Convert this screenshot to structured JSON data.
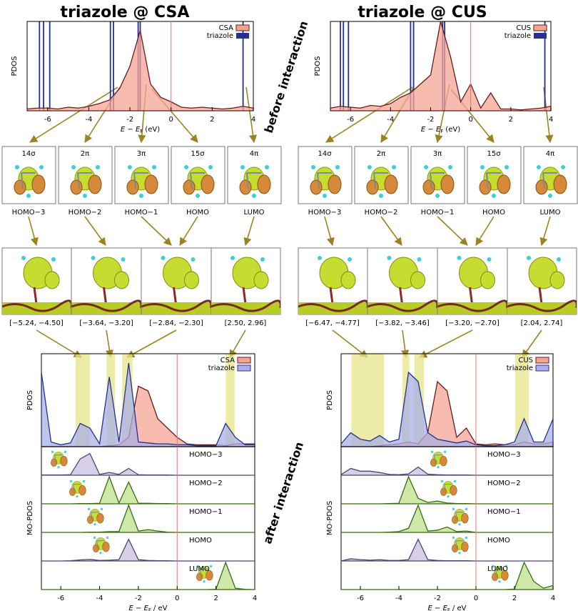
{
  "titles": [
    "triazole @ CSA",
    "triazole @ CUS"
  ],
  "side_labels": [
    "before interaction",
    "after interaction"
  ],
  "orbitals": [
    {
      "name": "14σ",
      "homo": "HOMO−3"
    },
    {
      "name": "2π",
      "homo": "HOMO−2"
    },
    {
      "name": "3π",
      "homo": "HOMO−1"
    },
    {
      "name": "15σ",
      "homo": "HOMO"
    },
    {
      "name": "4π",
      "homo": "LUMO"
    }
  ],
  "chart_data": [
    {
      "type": "levels",
      "ylabel": "PDOS",
      "xlabel": {
        "text": "E − E",
        "sub": "F",
        "unit": "(eV)"
      },
      "xlim": [
        -7,
        4
      ],
      "ylim": [
        0,
        10
      ],
      "xticks": [
        -6,
        -4,
        -2,
        0,
        2,
        4
      ],
      "fermi_level": 0,
      "fermi_color": "#e87070",
      "x": [
        -7,
        -6.5,
        -6,
        -5.5,
        -5,
        -4.5,
        -4,
        -3.5,
        -3,
        -2.5,
        -2,
        -1.5,
        -1,
        -0.5,
        0,
        0.5,
        1,
        1.5,
        2,
        2.5,
        3,
        3.5,
        4
      ],
      "series": [
        {
          "name": "CSA",
          "color": "#f4a494",
          "line": "#6b1a1a",
          "values": [
            0.2,
            0.3,
            0.3,
            0.2,
            0.4,
            0.3,
            0.5,
            0.8,
            1.2,
            2.5,
            5,
            9,
            3,
            1.5,
            1,
            0.4,
            0.3,
            0.4,
            0.3,
            0.2,
            0.3,
            0.5,
            0.3
          ]
        },
        {
          "name": "triazole",
          "color": "#26318f",
          "levels": [
            -6.4,
            -6.2,
            -5.9,
            -2.95,
            -2.8,
            -1.6,
            -1.5,
            3.5
          ]
        }
      ]
    },
    {
      "type": "levels",
      "ylabel": "PDOS",
      "xlabel": {
        "text": "E − E",
        "sub": "F",
        "unit": "(eV)"
      },
      "xlim": [
        -7,
        4
      ],
      "ylim": [
        0,
        10
      ],
      "xticks": [
        -6,
        -4,
        -2,
        0,
        2,
        4
      ],
      "fermi_level": 0,
      "fermi_color": "#e87070",
      "x": [
        -7,
        -6.5,
        -6,
        -5.5,
        -5,
        -4.5,
        -4,
        -3.5,
        -3,
        -2.5,
        -2,
        -1.5,
        -1,
        -0.5,
        0,
        0.5,
        1,
        1.5,
        2,
        2.5,
        3,
        3.5,
        4
      ],
      "series": [
        {
          "name": "CUS",
          "color": "#f4a494",
          "line": "#6b1a1a",
          "values": [
            0.3,
            0.5,
            0.4,
            0.3,
            0.6,
            0.5,
            0.8,
            1.5,
            2,
            3,
            4,
            10,
            6,
            1,
            3,
            0.3,
            2,
            0.2,
            0.2,
            0.1,
            0.2,
            0.3,
            0.5
          ]
        },
        {
          "name": "triazole",
          "color": "#26318f",
          "levels": [
            -6.5,
            -6.35,
            -6.1,
            -3.0,
            -2.85,
            -1.4,
            -1.3,
            3.7
          ]
        }
      ]
    },
    {
      "type": "area",
      "ylabel": "PDOS",
      "xlim": [
        -7,
        4
      ],
      "ylim": [
        0,
        10
      ],
      "fermi_level": 0,
      "fermi_color": "#e87070",
      "band_color": "#e6e68a",
      "x": [
        -7,
        -6.5,
        -6,
        -5.5,
        -5,
        -4.5,
        -4,
        -3.5,
        -3,
        -2.5,
        -2,
        -1.5,
        -1,
        -0.5,
        0,
        0.5,
        1,
        1.5,
        2,
        2.5,
        3,
        3.5,
        4
      ],
      "bands": [
        {
          "range": [
            -5.24,
            -4.5
          ],
          "label": "[−5.24, −4.50]"
        },
        {
          "range": [
            -3.64,
            -3.2
          ],
          "label": "[−3.64, −3.20]"
        },
        {
          "range": [
            -2.84,
            -2.3
          ],
          "label": "[−2.84, −2.30]"
        },
        {
          "range": [
            2.5,
            2.96
          ],
          "label": "[2.50, 2.96]"
        }
      ],
      "series": [
        {
          "name": "CSA",
          "color": "#f4a494",
          "line": "#6b1a1a",
          "values": [
            0,
            0,
            0,
            0,
            0,
            0,
            0,
            0.1,
            0.2,
            1,
            6.5,
            6,
            3,
            2,
            1,
            0.3,
            0.2,
            0.2,
            0.2,
            0.1,
            0.3,
            0.3,
            0.3
          ]
        },
        {
          "name": "triazole",
          "color": "#a9b0e6",
          "line": "#26318f",
          "values": [
            8,
            0.5,
            0.2,
            0.4,
            2.5,
            2,
            0.3,
            7.5,
            0.5,
            9,
            0.5,
            0.4,
            0.3,
            0.3,
            0.2,
            0.2,
            0.1,
            0.1,
            0.1,
            2.5,
            1,
            0.2,
            0.2
          ]
        }
      ]
    },
    {
      "type": "area",
      "ylabel": "PDOS",
      "xlim": [
        -7,
        4
      ],
      "ylim": [
        0,
        10
      ],
      "fermi_level": 0,
      "fermi_color": "#e87070",
      "band_color": "#e6e68a",
      "x": [
        -7,
        -6.5,
        -6,
        -5.5,
        -5,
        -4.5,
        -4,
        -3.5,
        -3,
        -2.5,
        -2,
        -1.5,
        -1,
        -0.5,
        0,
        0.5,
        1,
        1.5,
        2,
        2.5,
        3,
        3.5,
        4
      ],
      "bands": [
        {
          "range": [
            -6.47,
            -4.77
          ],
          "label": "[−6.47, −4.77]"
        },
        {
          "range": [
            -3.82,
            -3.46
          ],
          "label": "[−3.82, −3.46]"
        },
        {
          "range": [
            -3.2,
            -2.7
          ],
          "label": "[−3.20, −2.70]"
        },
        {
          "range": [
            2.04,
            2.74
          ],
          "label": "[2.04, 2.74]"
        }
      ],
      "series": [
        {
          "name": "CUS",
          "color": "#f4a494",
          "line": "#6b1a1a",
          "values": [
            0,
            0,
            0,
            0,
            0.1,
            0.2,
            0.3,
            0.5,
            0.3,
            1.5,
            7,
            6,
            1,
            2,
            0.3,
            0.2,
            0.3,
            0.2,
            0.2,
            0.5,
            0.3,
            0.3,
            0.5
          ]
        },
        {
          "name": "triazole",
          "color": "#a9b0e6",
          "line": "#26318f",
          "values": [
            0.3,
            1.5,
            0.8,
            0.6,
            1.2,
            0.5,
            0.8,
            8,
            7,
            1.5,
            0.8,
            0.6,
            0.4,
            0.6,
            0.2,
            0.1,
            0.1,
            0.2,
            0.5,
            3,
            0.5,
            0.5,
            3
          ]
        }
      ]
    },
    {
      "type": "mo-pdos",
      "ylabel": "MO-PDOS",
      "xlabel": {
        "text": "E − E",
        "sub": "F",
        "unit": "/ eV"
      },
      "xlim": [
        -7,
        4
      ],
      "ylim": [
        0,
        10
      ],
      "xticks": [
        -6,
        -4,
        -2,
        0,
        2,
        4
      ],
      "fermi_level": 0,
      "fermi_color": "#e87070",
      "x": [
        -7,
        -6.5,
        -6,
        -5.5,
        -5,
        -4.5,
        -4,
        -3.5,
        -3,
        -2.5,
        -2,
        -1.5,
        -1,
        -0.5,
        0,
        0.5,
        1,
        1.5,
        2,
        2.5,
        3,
        3.5,
        4
      ],
      "series": [
        {
          "name": "HOMO−3",
          "color": "#c9bde0",
          "line": "#4f4470",
          "values": [
            0.1,
            0.1,
            0.1,
            0.2,
            6,
            8,
            0.3,
            1,
            0.3,
            2.5,
            0.2,
            0.1,
            0.1,
            0.1,
            0,
            0,
            0,
            0,
            0,
            0,
            0,
            0,
            0
          ]
        },
        {
          "name": "HOMO−2",
          "color": "#bde28a",
          "line": "#3a6a12",
          "values": [
            0,
            0,
            0,
            0,
            0.1,
            0.1,
            0.2,
            10,
            0.3,
            8,
            0.2,
            0.2,
            0.1,
            0.1,
            0,
            0,
            0,
            0,
            0,
            0,
            0,
            0,
            0
          ]
        },
        {
          "name": "HOMO−1",
          "color": "#bde28a",
          "line": "#3a6a12",
          "values": [
            0,
            0,
            0,
            0,
            0,
            0.1,
            0.1,
            0.3,
            0.3,
            10,
            0.5,
            1,
            0.5,
            0.1,
            0,
            0,
            0,
            0,
            0,
            0,
            0,
            0,
            0
          ]
        },
        {
          "name": "HOMO",
          "color": "#c9bde0",
          "line": "#4f4470",
          "values": [
            0,
            0,
            0,
            0.1,
            0.4,
            0.6,
            0.2,
            0.3,
            0.5,
            8,
            0.5,
            0.2,
            0.1,
            0.1,
            0,
            0,
            0,
            0,
            0,
            0,
            0,
            0,
            0
          ]
        },
        {
          "name": "LUMO",
          "color": "#bde28a",
          "line": "#3a6a12",
          "values": [
            0,
            0,
            0,
            0,
            0,
            0,
            0,
            0,
            0,
            0,
            0,
            0,
            0,
            0,
            0,
            0,
            0,
            0,
            0.1,
            10,
            0.5,
            0.1,
            0
          ]
        }
      ]
    },
    {
      "type": "mo-pdos",
      "ylabel": "MO-PDOS",
      "xlabel": {
        "text": "E − E",
        "sub": "F",
        "unit": "/ eV"
      },
      "xlim": [
        -7,
        4
      ],
      "ylim": [
        0,
        10
      ],
      "xticks": [
        -6,
        -4,
        -2,
        0,
        2,
        4
      ],
      "fermi_level": 0,
      "fermi_color": "#e87070",
      "x": [
        -7,
        -6.5,
        -6,
        -5.5,
        -5,
        -4.5,
        -4,
        -3.5,
        -3,
        -2.5,
        -2,
        -1.5,
        -1,
        -0.5,
        0,
        0.5,
        1,
        1.5,
        2,
        2.5,
        3,
        3.5,
        4
      ],
      "series": [
        {
          "name": "HOMO−3",
          "color": "#c9bde0",
          "line": "#4f4470",
          "values": [
            0.2,
            2.5,
            1.5,
            1.5,
            1,
            0.3,
            0.2,
            0.5,
            3,
            0.4,
            0.2,
            0.1,
            0.1,
            0.1,
            0,
            0,
            0,
            0,
            0,
            0,
            0,
            0,
            0
          ]
        },
        {
          "name": "HOMO−2",
          "color": "#bde28a",
          "line": "#3a6a12",
          "values": [
            0,
            0,
            0,
            0,
            0,
            0.1,
            0.2,
            10,
            2,
            0.5,
            1,
            0.3,
            0.1,
            0.1,
            0,
            0,
            0,
            0,
            0,
            0,
            0,
            0,
            0
          ]
        },
        {
          "name": "HOMO−1",
          "color": "#bde28a",
          "line": "#3a6a12",
          "values": [
            0,
            0,
            0,
            0,
            0,
            0.1,
            0.3,
            1.5,
            10,
            0.5,
            0.8,
            2,
            0.3,
            0.5,
            0,
            0,
            0,
            0,
            0,
            0,
            0,
            0,
            0
          ]
        },
        {
          "name": "HOMO",
          "color": "#c9bde0",
          "line": "#4f4470",
          "values": [
            0,
            0.8,
            0.5,
            0.3,
            0.5,
            0.2,
            0.2,
            0.5,
            8,
            0.5,
            0.2,
            0.1,
            0.1,
            0.1,
            0,
            0,
            0,
            0,
            0,
            0,
            0,
            0,
            0
          ]
        },
        {
          "name": "LUMO",
          "color": "#bde28a",
          "line": "#3a6a12",
          "values": [
            0,
            0,
            0,
            0,
            0,
            0,
            0,
            0,
            0,
            0,
            0,
            0,
            0,
            0,
            0,
            0,
            0,
            0,
            0.2,
            10,
            3,
            0.5,
            1.5
          ]
        }
      ]
    }
  ]
}
